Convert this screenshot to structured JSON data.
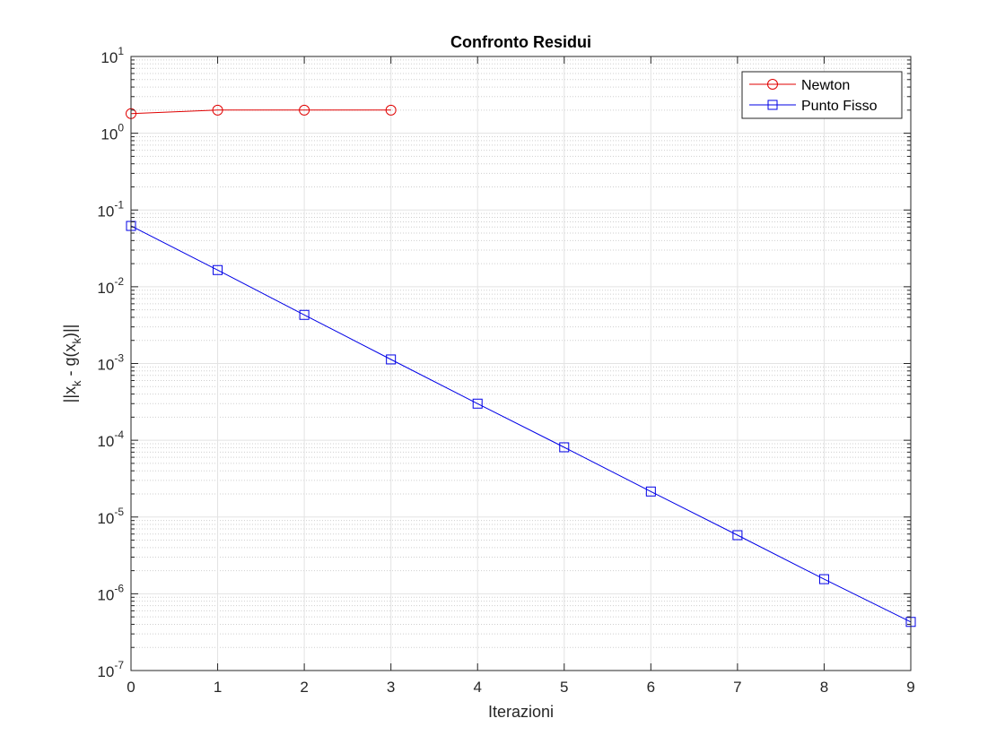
{
  "chart_data": {
    "type": "line",
    "title": "Confronto Residui",
    "xlabel": "Iterazioni",
    "ylabel_parts": [
      "||x",
      "k",
      " - g(x",
      "k",
      ")||"
    ],
    "y_scale": "log",
    "xlim": [
      0,
      9
    ],
    "ylim": [
      1e-07,
      10
    ],
    "x_ticks": [
      "0",
      "1",
      "2",
      "3",
      "4",
      "5",
      "6",
      "7",
      "8",
      "9"
    ],
    "y_tick_base": "10",
    "y_tick_exponents": [
      "-7",
      "-6",
      "-5",
      "-4",
      "-3",
      "-2",
      "-1",
      "0",
      "1"
    ],
    "grid": true,
    "minor_grid": true,
    "legend_position": "top-right",
    "series": [
      {
        "name": "Newton",
        "color": "#e00000",
        "marker": "circle",
        "x": [
          0,
          1,
          2,
          3
        ],
        "y": [
          1.8,
          2.0,
          2.0,
          2.0
        ]
      },
      {
        "name": "Punto Fisso",
        "color": "#0000e6",
        "marker": "square",
        "x": [
          0,
          1,
          2,
          3,
          4,
          5,
          6,
          7,
          8,
          9
        ],
        "y": [
          0.062,
          0.0165,
          0.0043,
          0.00113,
          0.0003,
          8.1e-05,
          2.15e-05,
          5.8e-06,
          1.55e-06,
          4.3e-07
        ]
      }
    ]
  }
}
